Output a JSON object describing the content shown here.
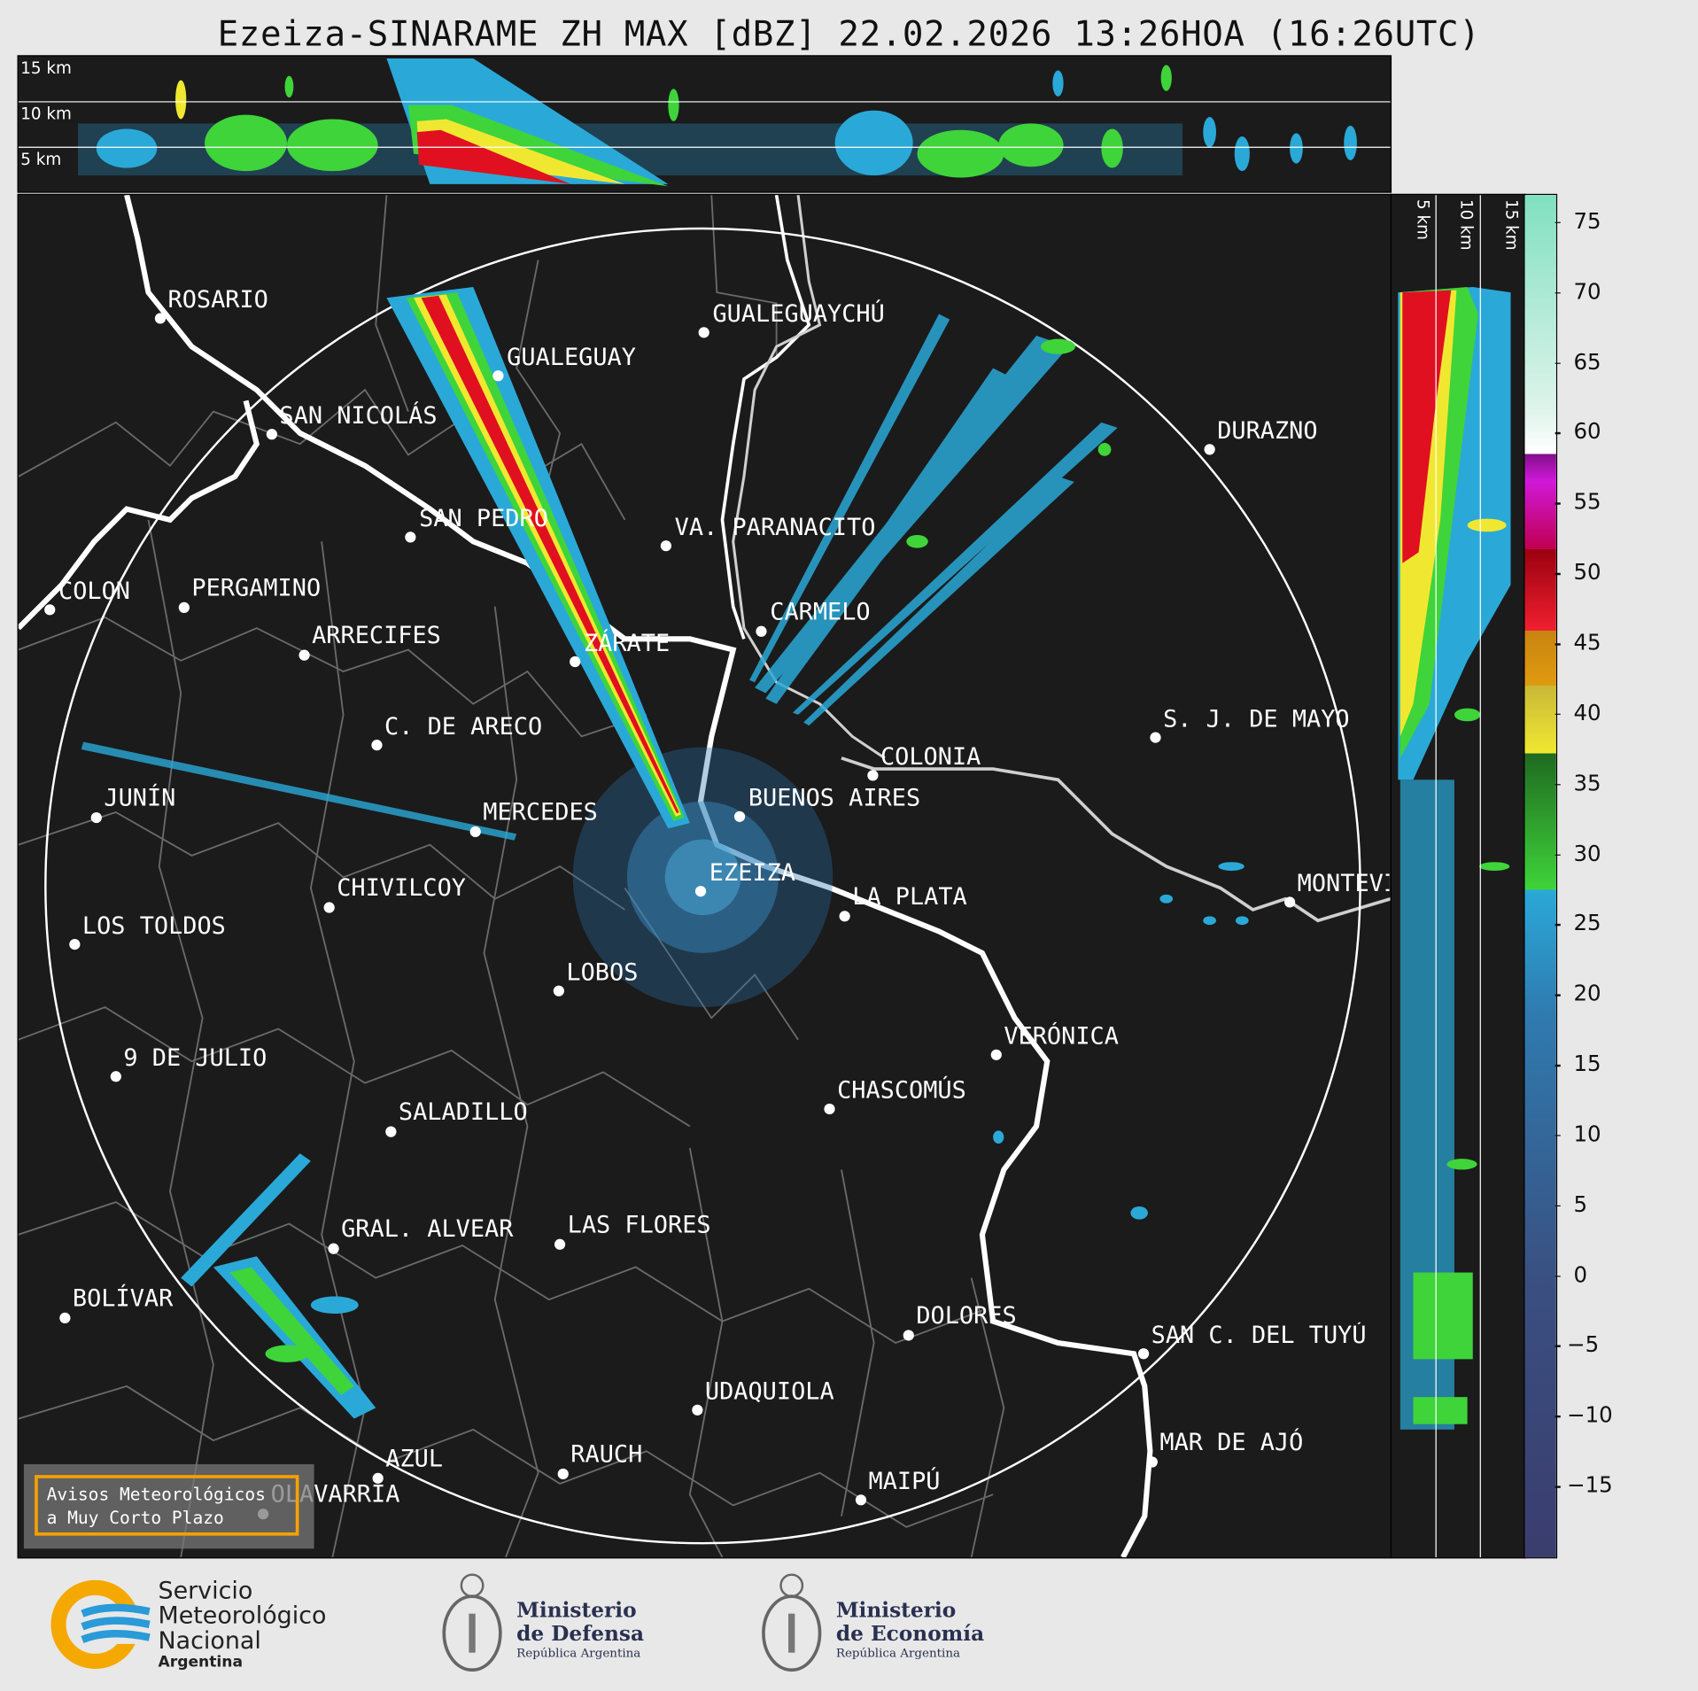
{
  "title": "Ezeiza-SINARAME ZH MAX [dBZ] 22.02.2026 13:26HOA (16:26UTC)",
  "top_panel": {
    "altitude_labels": [
      "15 km",
      "10 km",
      "5 km"
    ]
  },
  "side_panel": {
    "altitude_labels": [
      "5 km",
      "10 km",
      "15 km"
    ]
  },
  "colorbar": {
    "unit": "dBZ",
    "ticks": [
      "75",
      "70",
      "65",
      "60",
      "55",
      "50",
      "45",
      "40",
      "35",
      "30",
      "25",
      "20",
      "15",
      "10",
      "5",
      "0",
      "−5",
      "−10",
      "−15"
    ],
    "range": [
      -20,
      77
    ],
    "colors": {
      "low": "#3a3d6e",
      "blue": "#2aa9d8",
      "green": "#3fd43a",
      "yellow": "#f0e830",
      "orange": "#e09a10",
      "red": "#e01020",
      "darkred": "#9a0010",
      "magenta": "#d018d8",
      "white": "#ffffff",
      "teal": "#80e0c0"
    }
  },
  "cities": [
    {
      "name": "ROSARIO"
    },
    {
      "name": "GUALEGUAYCHÚ"
    },
    {
      "name": "GUALEGUAY"
    },
    {
      "name": "SAN NICOLÁS"
    },
    {
      "name": "DURAZNO"
    },
    {
      "name": "SAN PEDRO"
    },
    {
      "name": "VA. PARANACITO"
    },
    {
      "name": "COLON"
    },
    {
      "name": "PERGAMINO"
    },
    {
      "name": "CARMELO"
    },
    {
      "name": "ARRECIFES"
    },
    {
      "name": "ZÁRATE"
    },
    {
      "name": "S. J. DE MAYO"
    },
    {
      "name": "C. DE ARECO"
    },
    {
      "name": "COLONIA"
    },
    {
      "name": "JUNÍN"
    },
    {
      "name": "BUENOS AIRES"
    },
    {
      "name": "MERCEDES"
    },
    {
      "name": "EZEIZA"
    },
    {
      "name": "MONTEVIDEO"
    },
    {
      "name": "CHIVILCOY"
    },
    {
      "name": "LA PLATA"
    },
    {
      "name": "LOS TOLDOS"
    },
    {
      "name": "LOBOS"
    },
    {
      "name": "VERÓNICA"
    },
    {
      "name": "9 DE JULIO"
    },
    {
      "name": "CHASCOMÚS"
    },
    {
      "name": "SALADILLO"
    },
    {
      "name": "GRAL. ALVEAR"
    },
    {
      "name": "LAS FLORES"
    },
    {
      "name": "BOLÍVAR"
    },
    {
      "name": "DOLORES"
    },
    {
      "name": "SAN C. DEL TUYÚ"
    },
    {
      "name": "UDAQUIOLA"
    },
    {
      "name": "AZUL"
    },
    {
      "name": "RAUCH"
    },
    {
      "name": "MAR DE AJÓ"
    },
    {
      "name": "MAIPÚ"
    },
    {
      "name": "OLAVARRÍA"
    }
  ],
  "aviso": {
    "line1": "Avisos Meteorológicos",
    "line2": "a Muy Corto Plazo"
  },
  "footer": {
    "smn": [
      "Servicio",
      "Meteorológico",
      "Nacional",
      "Argentina"
    ],
    "defensa": [
      "Ministerio",
      "de Defensa",
      "República Argentina"
    ],
    "economia": [
      "Ministerio",
      "de Economía",
      "República Argentina"
    ]
  }
}
